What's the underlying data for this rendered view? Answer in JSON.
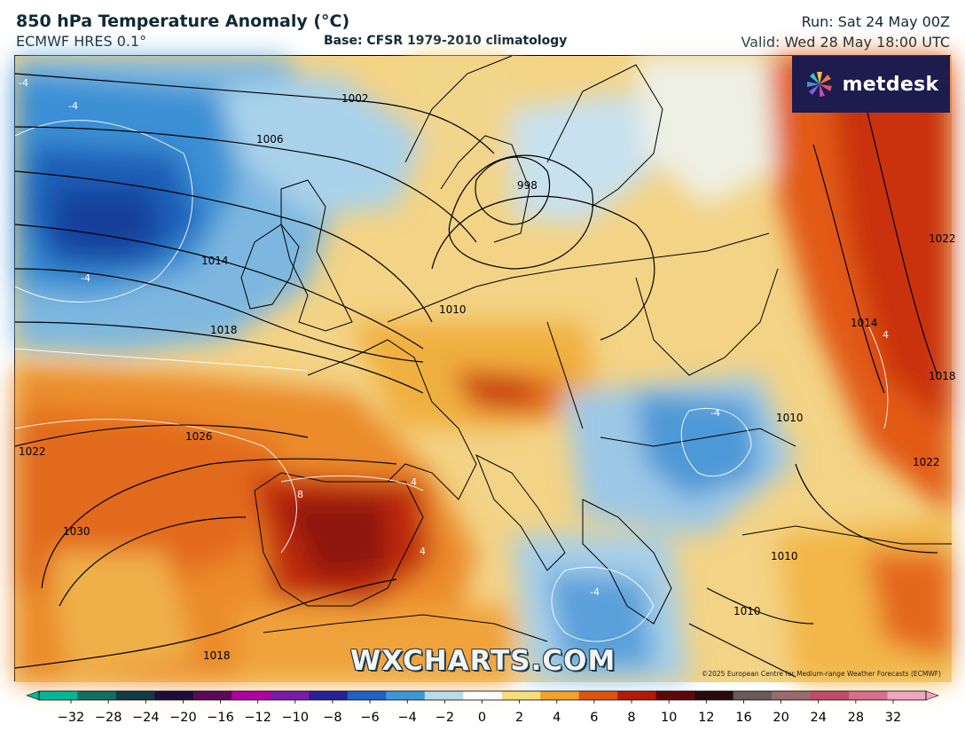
{
  "header": {
    "title": "850 hPa Temperature Anomaly (°C)",
    "model": "ECMWF HRES 0.1°",
    "base": "Base: CFSR 1979-2010 climatology",
    "run": "Run: Sat 24 May 00Z",
    "valid": "Valid: Wed 28 May 18:00 UTC"
  },
  "logo": {
    "text": "metdesk",
    "icon": "pinwheel-icon"
  },
  "watermark": "WXCHARTS.COM",
  "copyright": "©2025 European Centre for Medium-range Weather Forecasts (ECMWF)",
  "isobar_labels": [
    "1002",
    "1006",
    "998",
    "1014",
    "1010",
    "1018",
    "1022",
    "1026",
    "1030",
    "1018",
    "1014",
    "1022",
    "1018",
    "1010",
    "1010",
    "1010",
    "1022"
  ],
  "anomaly_labels": [
    "-4",
    "-4",
    "-4",
    "8",
    "4",
    "4",
    "-4",
    "4",
    "-4"
  ],
  "colorbar": {
    "ticks": [
      "−32",
      "−28",
      "−24",
      "−20",
      "−16",
      "−12",
      "−10",
      "−8",
      "−6",
      "−4",
      "−2",
      "0",
      "2",
      "4",
      "6",
      "8",
      "10",
      "12",
      "16",
      "20",
      "24",
      "28",
      "32"
    ],
    "colors": [
      "#00b894",
      "#0e6f62",
      "#113a47",
      "#1e0f3a",
      "#5a0a58",
      "#b100a6",
      "#7a1aa8",
      "#28209a",
      "#1f62c8",
      "#3c98d8",
      "#b9dbee",
      "#fafafa",
      "#f7dd7c",
      "#f4a22a",
      "#e0540e",
      "#b81808",
      "#5f0808",
      "#2a0a0a",
      "#6b5a5a",
      "#9a6b6b",
      "#c24a68",
      "#d96f8c",
      "#f0a6bf"
    ]
  }
}
